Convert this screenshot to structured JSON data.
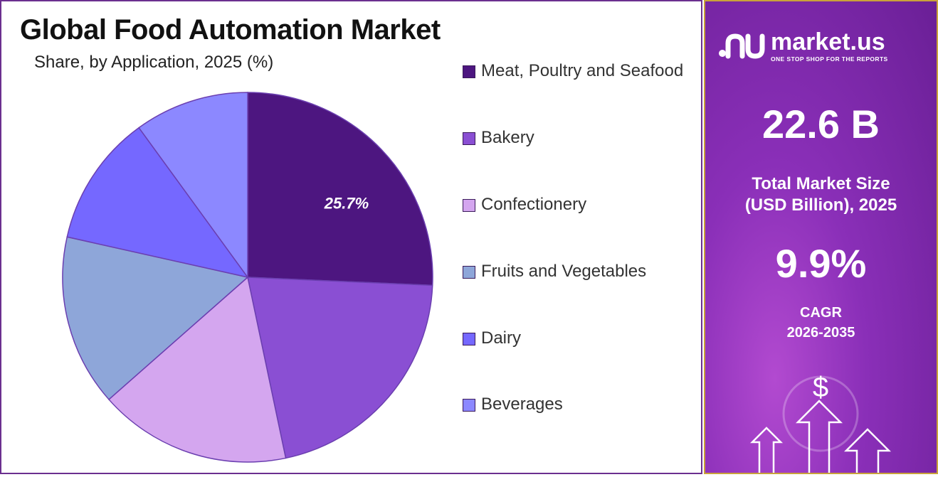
{
  "chart": {
    "title": "Global Food Automation Market",
    "subtitle": "Share, by Application, 2025 (%)"
  },
  "chart_data": {
    "type": "pie",
    "title": "Global Food Automation Market",
    "subtitle": "Share, by Application, 2025 (%)",
    "unit": "%",
    "slices": [
      {
        "label": "Meat, Poultry and Seafood",
        "value": 25.7,
        "color": "#4d1680",
        "data_label": "25.7%"
      },
      {
        "label": "Bakery",
        "value": 21.0,
        "color": "#8a4fd3",
        "data_label": ""
      },
      {
        "label": "Confectionery",
        "value": 16.8,
        "color": "#d4a6ef",
        "data_label": ""
      },
      {
        "label": "Fruits and Vegetables",
        "value": 15.0,
        "color": "#8ea6d9",
        "data_label": ""
      },
      {
        "label": "Dairy",
        "value": 11.5,
        "color": "#7568ff",
        "data_label": ""
      },
      {
        "label": "Beverages",
        "value": 10.0,
        "color": "#8c88ff",
        "data_label": ""
      }
    ],
    "legend_position": "right",
    "start_angle_deg": 0,
    "direction": "clockwise"
  },
  "side_panel": {
    "brand_name": "market.us",
    "brand_tagline": "ONE STOP SHOP FOR THE REPORTS",
    "market_size_value": "22.6 B",
    "market_size_label_line1": "Total Market Size",
    "market_size_label_line2": "(USD Billion), 2025",
    "cagr_value": "9.9%",
    "cagr_label_line1": "CAGR",
    "cagr_label_line2": "2026-2035",
    "dollar_symbol": "$"
  },
  "colors": {
    "panel_border": "#6b2f8f",
    "side_border": "#c9a23a",
    "side_bg": "#8a2fb8"
  }
}
